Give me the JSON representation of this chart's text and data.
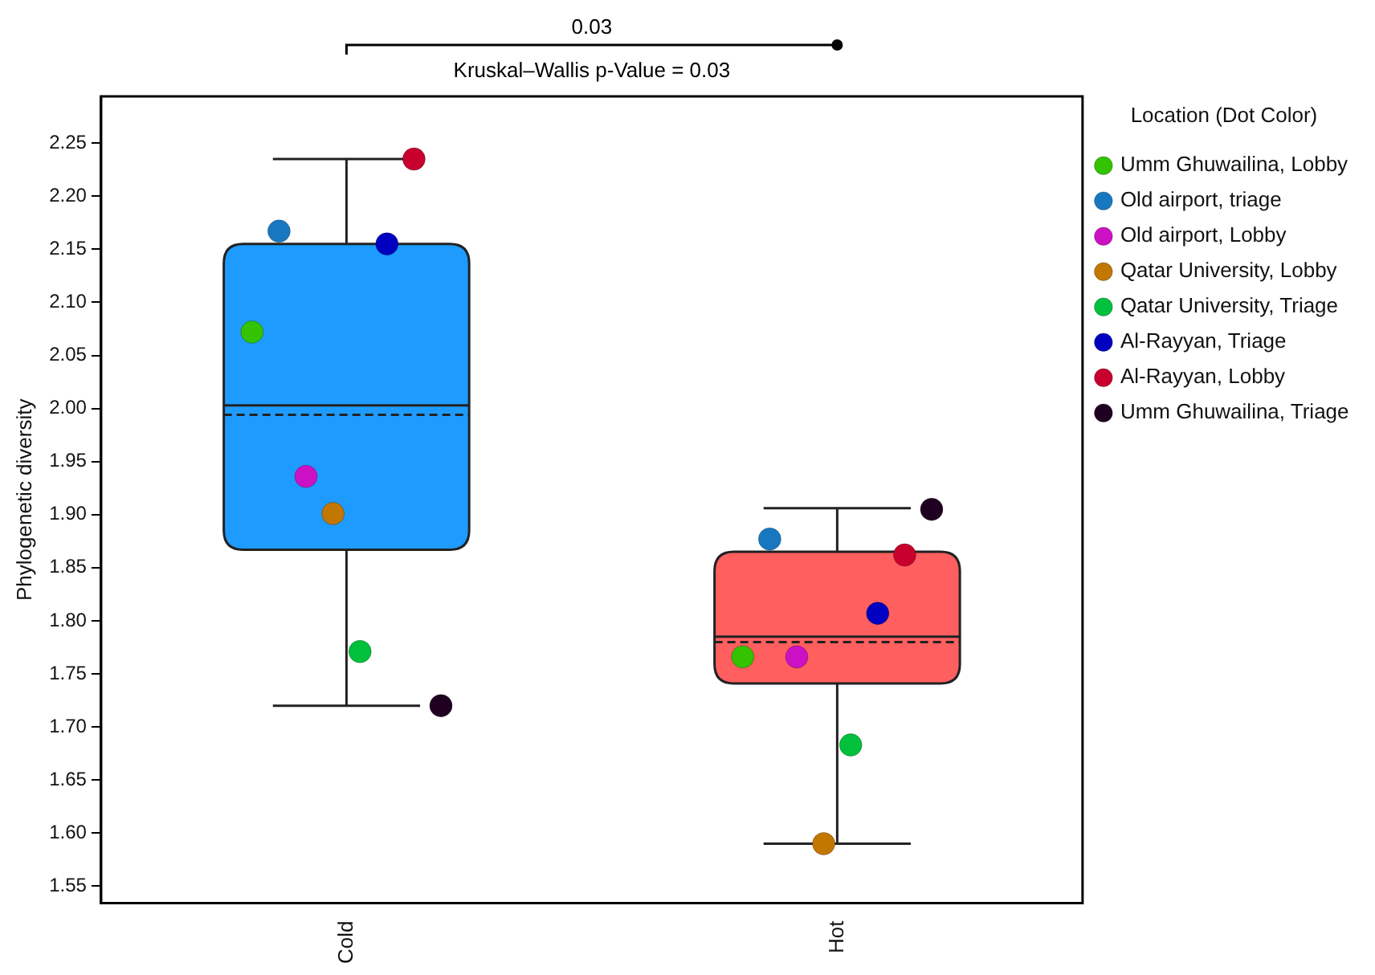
{
  "chart_data": {
    "type": "box",
    "categories": [
      "Cold",
      "Hot"
    ],
    "ylabel": "Phylogenetic diversity",
    "legend_title": "Location (Dot Color)",
    "annotations": [
      "0.03",
      "Kruskal–Wallis p-Value = 0.03"
    ],
    "colors": [
      "#1e9bff",
      "#ff5f5f"
    ],
    "boxes": [
      {
        "low": 1.72,
        "q1": 1.867,
        "median": 2.003,
        "q3": 2.155,
        "high": 2.235,
        "mean": 1.994
      },
      {
        "low": 1.59,
        "q1": 1.741,
        "median": 1.785,
        "q3": 1.865,
        "high": 1.906,
        "mean": 1.78
      }
    ],
    "ylim": [
      1.534,
      2.294
    ],
    "yticks": [
      {
        "value": 1.55,
        "label": "1.55"
      },
      {
        "value": 1.6,
        "label": "1.60"
      },
      {
        "value": 1.65,
        "label": "1.65"
      },
      {
        "value": 1.7,
        "label": "1.70"
      },
      {
        "value": 1.75,
        "label": "1.75"
      },
      {
        "value": 1.8,
        "label": "1.80"
      },
      {
        "value": 1.85,
        "label": "1.85"
      },
      {
        "value": 1.9,
        "label": "1.90"
      },
      {
        "value": 1.95,
        "label": "1.95"
      },
      {
        "value": 2.0,
        "label": "2.00"
      },
      {
        "value": 2.05,
        "label": "2.05"
      },
      {
        "value": 2.1,
        "label": "2.10"
      },
      {
        "value": 2.15,
        "label": "2.15"
      },
      {
        "value": 2.2,
        "label": "2.20"
      },
      {
        "value": 2.25,
        "label": "2.25"
      }
    ],
    "grid": false,
    "legend": "right",
    "marker": "circle",
    "series": [
      {
        "type": "scatter",
        "name": "Umm Ghuwailina, Lobby",
        "color": "#33c300",
        "x": [
          "Cold",
          "Hot"
        ],
        "values": [
          2.072,
          1.766
        ]
      },
      {
        "type": "scatter",
        "name": "Old airport, triage",
        "color": "#1778c0",
        "x": [
          "Cold",
          "Hot"
        ],
        "values": [
          2.167,
          1.877
        ]
      },
      {
        "type": "scatter",
        "name": "Old airport, Lobby",
        "color": "#cc11c4",
        "x": [
          "Cold",
          "Hot"
        ],
        "values": [
          1.936,
          1.766
        ]
      },
      {
        "type": "scatter",
        "name": "Qatar University, Lobby",
        "color": "#c27700",
        "x": [
          "Cold",
          "Hot"
        ],
        "values": [
          1.901,
          1.59
        ]
      },
      {
        "type": "scatter",
        "name": "Qatar University, Triage",
        "color": "#00c03c",
        "x": [
          "Cold",
          "Hot"
        ],
        "values": [
          1.771,
          1.683
        ]
      },
      {
        "type": "scatter",
        "name": "Al-Rayyan, Triage",
        "color": "#0000c0",
        "x": [
          "Cold",
          "Hot"
        ],
        "values": [
          2.155,
          1.807
        ]
      },
      {
        "type": "scatter",
        "name": "Al-Rayyan, Lobby",
        "color": "#c8002e",
        "x": [
          "Cold",
          "Hot"
        ],
        "values": [
          2.235,
          1.862
        ]
      },
      {
        "type": "scatter",
        "name": "Umm Ghuwailina, Triage",
        "color": "#200020",
        "x": [
          "Cold",
          "Hot"
        ],
        "values": [
          1.72,
          1.905
        ]
      }
    ]
  }
}
